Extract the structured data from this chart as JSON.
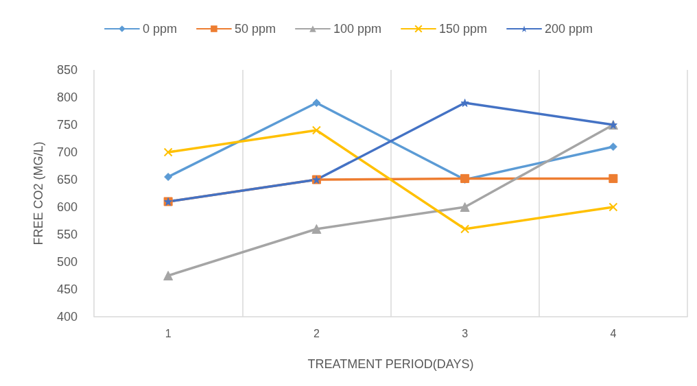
{
  "chart_data": {
    "type": "line",
    "xlabel": "TREATMENT PERIOD(DAYS)",
    "ylabel": "FREE CO2 (MG/L)",
    "categories": [
      "1",
      "2",
      "3",
      "4"
    ],
    "series": [
      {
        "name": "0 ppm",
        "color": "#5b9bd5",
        "marker": "diamond",
        "values": [
          655,
          790,
          650,
          710
        ]
      },
      {
        "name": "50 ppm",
        "color": "#ed7d31",
        "marker": "square",
        "values": [
          610,
          650,
          652,
          652
        ]
      },
      {
        "name": "100 ppm",
        "color": "#a5a5a5",
        "marker": "triangle",
        "values": [
          475,
          560,
          600,
          750
        ]
      },
      {
        "name": "150 ppm",
        "color": "#ffc000",
        "marker": "cross",
        "values": [
          700,
          740,
          560,
          600
        ]
      },
      {
        "name": "200 ppm",
        "color": "#4472c4",
        "marker": "star",
        "values": [
          610,
          650,
          790,
          750
        ]
      }
    ],
    "ylim": [
      400,
      850
    ],
    "yticks": [
      400,
      450,
      500,
      550,
      600,
      650,
      700,
      750,
      800,
      850
    ],
    "grid": "x",
    "legend": "top",
    "line_style": "solid"
  }
}
